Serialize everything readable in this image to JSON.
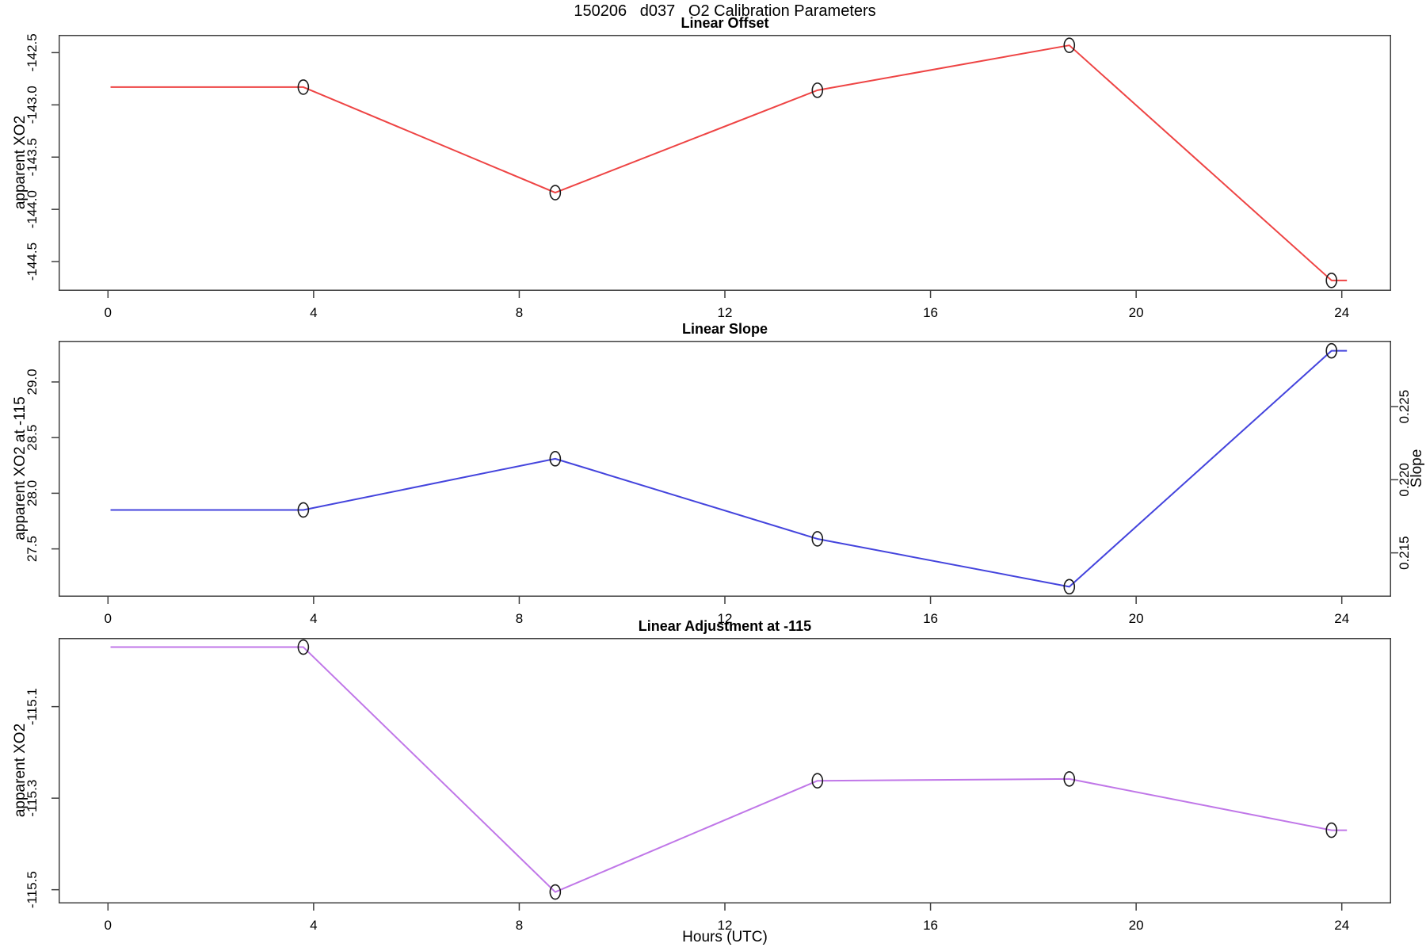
{
  "main_title": "150206   d037   O2 Calibration Parameters",
  "xaxis": {
    "label": "Hours (UTC)",
    "range": [
      -0.96,
      24.96
    ],
    "ticks": [
      0,
      4,
      8,
      12,
      16,
      20,
      24
    ],
    "tick_labels": [
      "0",
      "4",
      "8",
      "12",
      "16",
      "20",
      "24"
    ]
  },
  "marker_hours": [
    3.8,
    8.7,
    13.8,
    18.7,
    23.8
  ],
  "chart_data": [
    {
      "type": "line",
      "title": "Linear Offset",
      "ylabel": "apparent XO2",
      "color": "#ee4444",
      "marker_color": "#1a1a1a",
      "ylim": [
        -144.78,
        -142.33
      ],
      "yticks": [
        -144.5,
        -144.0,
        -143.5,
        -143.0,
        -142.5
      ],
      "ytick_labels": [
        "-144.5",
        "-144.0",
        "-143.5",
        "-143.0",
        "-142.5"
      ],
      "x": [
        0.05,
        3.8,
        8.7,
        13.8,
        18.7,
        23.8,
        24.1
      ],
      "y": [
        -142.83,
        -142.83,
        -143.84,
        -142.86,
        -142.43,
        -144.68,
        -144.68
      ],
      "grid": false,
      "legend": false
    },
    {
      "type": "line",
      "title": "Linear Slope",
      "ylabel": "apparent XO2 at -115",
      "y2label": "Slope",
      "color": "#4444dd",
      "marker_color": "#1a1a1a",
      "ylim": [
        27.07,
        29.37
      ],
      "yticks": [
        27.5,
        28.0,
        28.5,
        29.0
      ],
      "ytick_labels": [
        "27.5",
        "28.0",
        "28.5",
        "29.0"
      ],
      "y2lim": [
        0.212,
        0.2295
      ],
      "y2ticks": [
        0.215,
        0.22,
        0.225
      ],
      "y2tick_labels": [
        "0.215",
        "0.220",
        "0.225"
      ],
      "x": [
        0.05,
        3.8,
        8.7,
        13.8,
        18.7,
        23.8,
        24.1
      ],
      "y": [
        27.85,
        27.85,
        28.31,
        27.59,
        27.16,
        29.28,
        29.28
      ],
      "slope_values": [
        0.2179,
        0.2179,
        0.2214,
        0.2159,
        0.2126,
        0.2289,
        0.2289
      ],
      "grid": false,
      "legend": false
    },
    {
      "type": "line",
      "title": "Linear Adjustment at -115",
      "ylabel": "apparent XO2",
      "color": "#c077e8",
      "marker_color": "#1a1a1a",
      "ylim": [
        -115.53,
        -114.95
      ],
      "yticks": [
        -115.5,
        -115.3,
        -115.1
      ],
      "ytick_labels": [
        "-115.5",
        "-115.3",
        "-115.1"
      ],
      "x": [
        0.05,
        3.8,
        8.7,
        13.8,
        18.7,
        23.8,
        24.1
      ],
      "y": [
        -114.97,
        -114.97,
        -115.505,
        -115.262,
        -115.258,
        -115.37,
        -115.37
      ],
      "grid": false,
      "legend": false
    }
  ]
}
